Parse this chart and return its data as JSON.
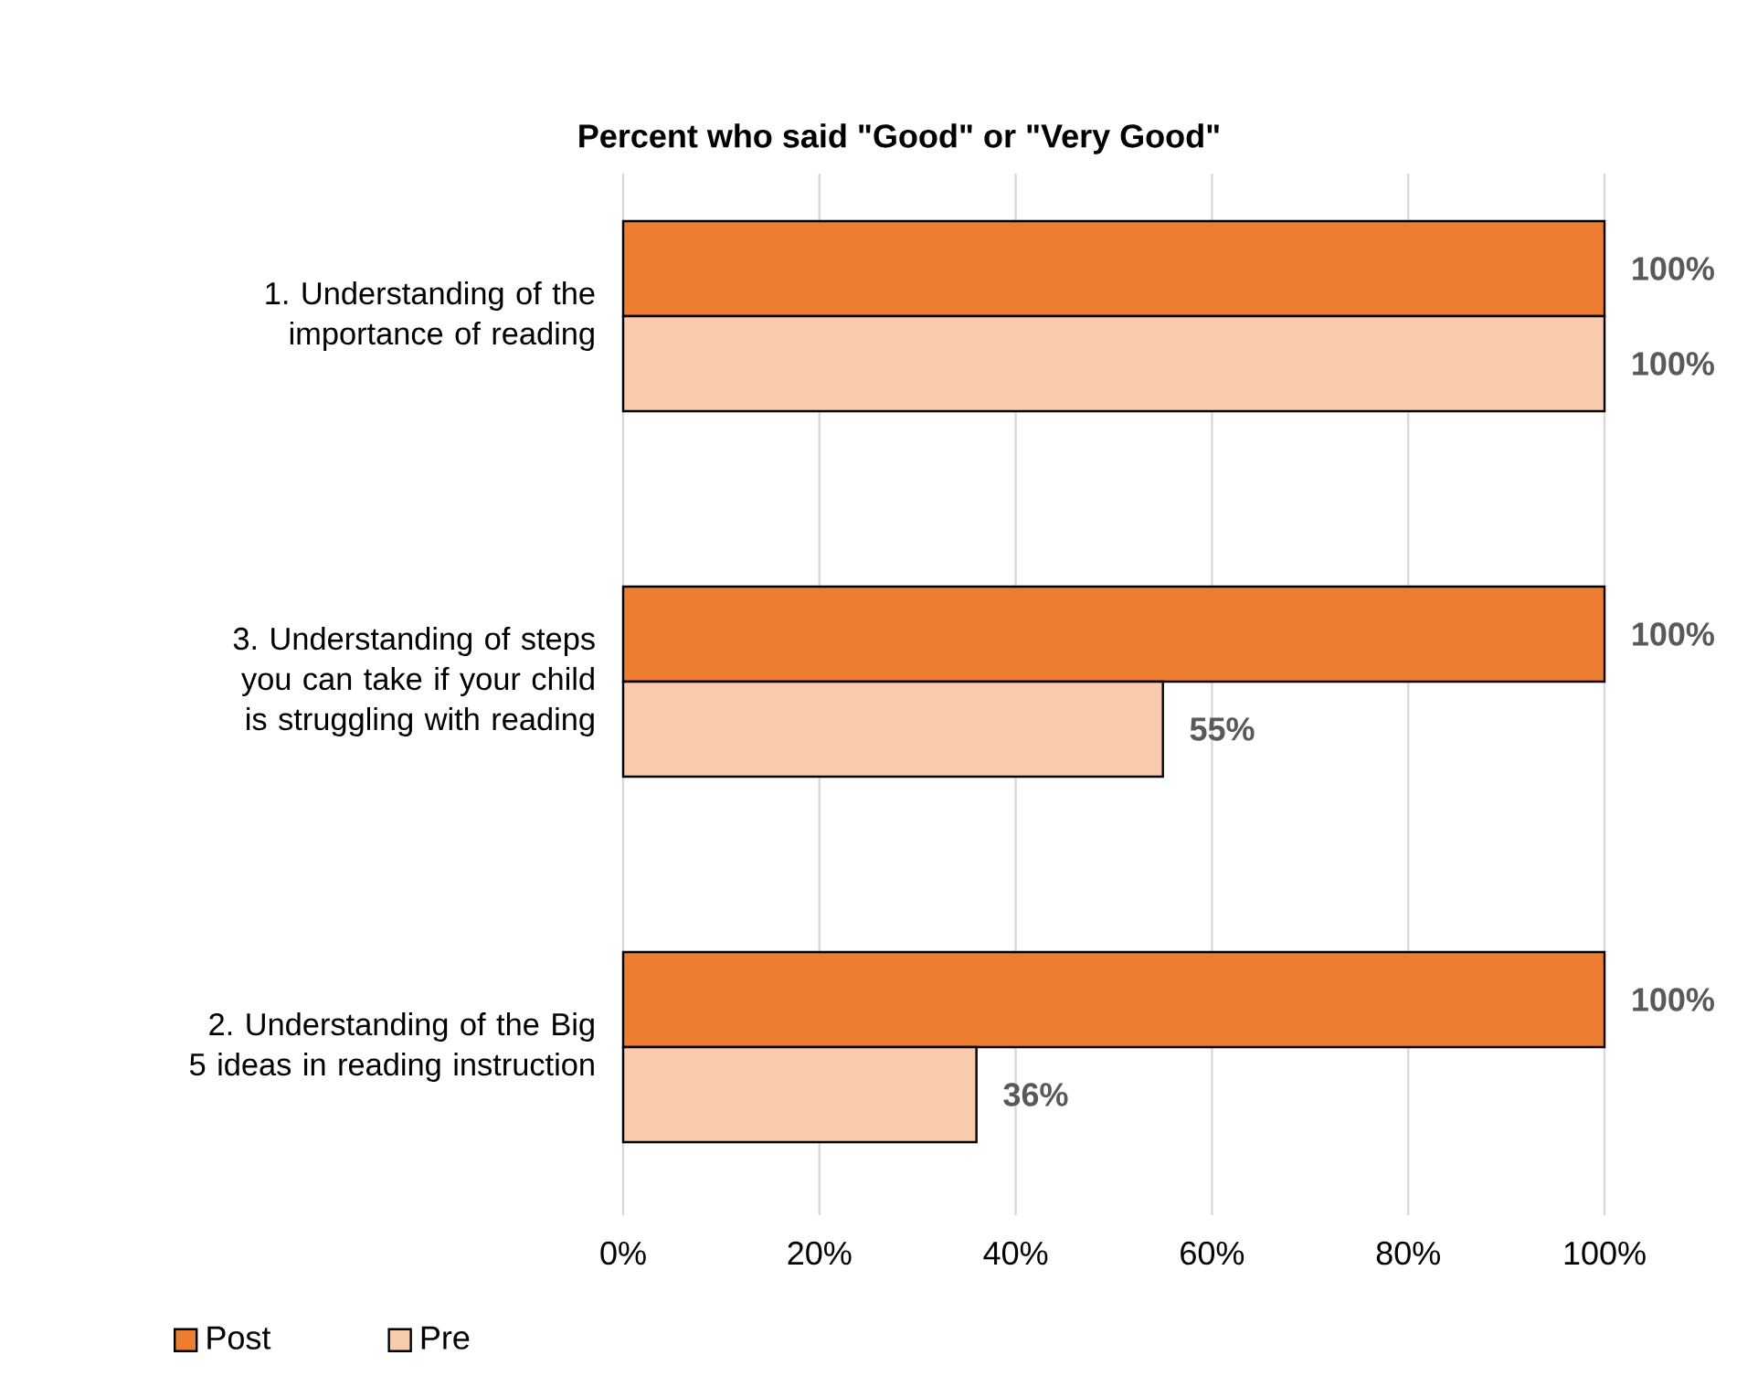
{
  "chart_data": {
    "type": "bar",
    "orientation": "horizontal",
    "title": "Percent who said \"Good\" or \"Very Good\"",
    "categories": [
      "1. Understanding of the importance of reading",
      "3. Understanding of steps you can take if your child is struggling with reading",
      "2. Understanding of the Big 5 ideas in reading instruction"
    ],
    "series": [
      {
        "name": "Post",
        "color": "#ed7d31",
        "values": [
          100,
          100,
          100
        ],
        "value_labels": [
          "100%",
          "100%",
          "100%"
        ]
      },
      {
        "name": "Pre",
        "color": "#f8cbad",
        "values": [
          100,
          55,
          36
        ],
        "value_labels": [
          "100%",
          "55%",
          "36%"
        ]
      }
    ],
    "xlim": [
      0,
      100
    ],
    "xticks": [
      {
        "value": 0,
        "label": "0%"
      },
      {
        "value": 20,
        "label": "20%"
      },
      {
        "value": 40,
        "label": "40%"
      },
      {
        "value": 60,
        "label": "60%"
      },
      {
        "value": 80,
        "label": "80%"
      },
      {
        "value": 100,
        "label": "100%"
      }
    ],
    "grid": "x",
    "legend": "bottom left"
  }
}
